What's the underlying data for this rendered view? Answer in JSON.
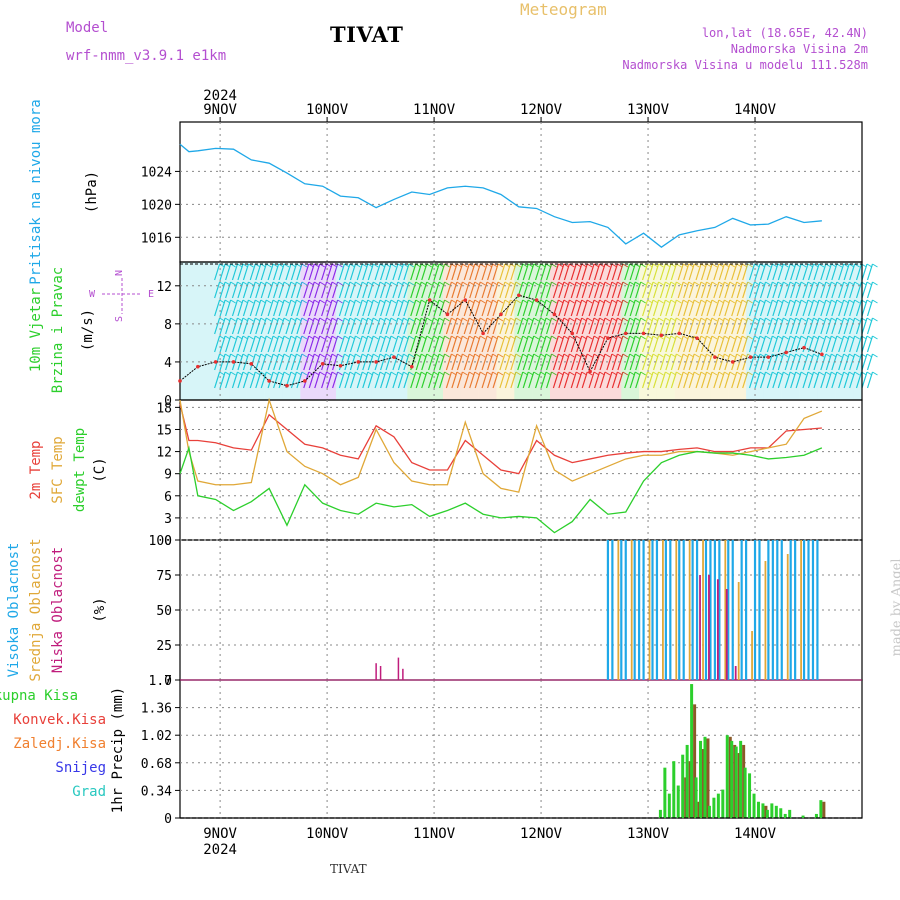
{
  "header": {
    "title": "TIVAT",
    "model_label": "Model",
    "model_name": "wrf-nmm_v3.9.1 e1km",
    "meteogram": "Meteogram",
    "info_lonlat": "lon,lat (18.65E, 42.4N)",
    "info_height": "Nadmorska Visina 2m",
    "info_model_height": "Nadmorska Visina u modelu 111.528m",
    "footer": "TIVAT",
    "credit": "made by Angel"
  },
  "colors": {
    "pressure": "#1fa8e8",
    "temp2m": "#e8403a",
    "sfc": "#e0a838",
    "dewpt": "#2ccf2c",
    "high_cloud": "#1fa8e8",
    "mid_cloud": "#e0a838",
    "low_cloud": "#c01c7c",
    "total_precip": "#2ccf2c",
    "conv_precip": "#e8403a",
    "frozen": "#f08030",
    "snow": "#3838e8",
    "hail": "#28c8c0"
  },
  "chart_data": [
    {
      "type": "line",
      "name": "pressure",
      "ylabel_lines": [
        "Pritisak na nivou mora",
        "(hPa)"
      ],
      "ylim": [
        1013,
        1030
      ],
      "yticks": [
        "1024",
        "1020",
        "1016"
      ],
      "ytick_values": [
        1024,
        1020,
        1016
      ],
      "x_dates": [
        "9NOV",
        "10NOV",
        "11NOV",
        "12NOV",
        "13NOV",
        "14NOV"
      ],
      "top_year": "2024",
      "x_hours": [
        0,
        2,
        4,
        8,
        12,
        16,
        20,
        24,
        28,
        32,
        36,
        40,
        44,
        48,
        52,
        56,
        60,
        64,
        68,
        72,
        76,
        80,
        84,
        88,
        92,
        96,
        100,
        104,
        108,
        112,
        116,
        120,
        124,
        128,
        132,
        136,
        140,
        144
      ],
      "values": [
        1027.3,
        1026.4,
        1026.5,
        1026.8,
        1026.7,
        1025.4,
        1025.0,
        1023.8,
        1022.5,
        1022.2,
        1021.0,
        1020.8,
        1019.6,
        1020.6,
        1021.5,
        1021.2,
        1022.0,
        1022.2,
        1022.0,
        1021.2,
        1019.7,
        1019.5,
        1018.5,
        1017.8,
        1017.9,
        1017.2,
        1015.2,
        1016.5,
        1014.8,
        1016.3,
        1016.8,
        1017.2,
        1018.3,
        1017.5,
        1017.6,
        1018.5,
        1017.8,
        1018.0
      ]
    },
    {
      "type": "line",
      "name": "wind",
      "ylabel_lines": [
        "10m Vjetar",
        "Brzina i Pravac",
        "(m/s)"
      ],
      "compass": "N",
      "compass_w": "W",
      "compass_e": "E",
      "compass_s": "S",
      "ylim": [
        0,
        14.5
      ],
      "yticks": [
        "12",
        "8",
        "4",
        "0"
      ],
      "ytick_values": [
        12,
        8,
        4,
        0
      ],
      "x_hours": [
        0,
        4,
        8,
        12,
        16,
        20,
        24,
        28,
        32,
        36,
        40,
        44,
        48,
        52,
        56,
        60,
        64,
        68,
        72,
        76,
        80,
        84,
        88,
        92,
        96,
        100,
        104,
        108,
        112,
        116,
        120,
        124,
        128,
        132,
        136,
        140,
        144
      ],
      "values": [
        2.0,
        3.5,
        4.0,
        4.0,
        3.8,
        2.0,
        1.5,
        2.0,
        3.8,
        3.6,
        4.0,
        4.0,
        4.5,
        3.5,
        10.5,
        9.0,
        10.5,
        7.0,
        9.0,
        11.0,
        10.5,
        9.0,
        7.0,
        3.0,
        6.5,
        7.0,
        7.0,
        6.8,
        7.0,
        6.5,
        4.5,
        4.0,
        4.5,
        4.5,
        5.0,
        5.5,
        4.8
      ],
      "barb_colors": [
        "#1fc8d8",
        "#1fc8d8",
        "#1fc8d8",
        "#1fc8d8",
        "#1fc8d8",
        "#8a2ae8",
        "#8a2ae8",
        "#1fc8d8",
        "#1fc8d8",
        "#1fc8d8",
        "#1fc8d8",
        "#2ccf2c",
        "#2ccf2c",
        "#e87a30",
        "#e87a30",
        "#e87a30",
        "#e8c038",
        "#2ccf2c",
        "#2ccf2c",
        "#e83030",
        "#e83030",
        "#e83030",
        "#e83030",
        "#2ccf2c",
        "#d8e038",
        "#d8e038",
        "#e8c038",
        "#e8c038",
        "#e8c038",
        "#e8c038",
        "#1fc8d8",
        "#1fc8d8",
        "#1fc8d8",
        "#1fc8d8",
        "#1fc8d8",
        "#1fc8d8",
        "#1fc8d8"
      ]
    },
    {
      "type": "line",
      "name": "temperature",
      "ylabel_lines": [
        "2m Temp",
        "SFC Temp",
        "dewpt Temp",
        "(C)"
      ],
      "ylim": [
        0,
        19
      ],
      "yticks": [
        "18",
        "15",
        "12",
        "9",
        "6",
        "3",
        "0"
      ],
      "ytick_values": [
        18,
        15,
        12,
        9,
        6,
        3,
        0
      ],
      "x_hours": [
        0,
        2,
        4,
        8,
        12,
        16,
        20,
        24,
        28,
        32,
        36,
        40,
        44,
        48,
        52,
        56,
        60,
        64,
        68,
        72,
        76,
        80,
        84,
        88,
        92,
        96,
        100,
        104,
        108,
        112,
        116,
        120,
        124,
        128,
        132,
        136,
        140,
        144
      ],
      "series": [
        {
          "name": "2m Temp",
          "values": [
            18.5,
            13.5,
            13.5,
            13.2,
            12.5,
            12.2,
            17.0,
            15.0,
            13.0,
            12.5,
            11.5,
            11.0,
            15.5,
            14.0,
            10.5,
            9.5,
            9.5,
            13.5,
            11.5,
            9.5,
            9.0,
            13.5,
            11.5,
            10.5,
            11.0,
            11.5,
            11.8,
            12.0,
            12.0,
            12.3,
            12.5,
            12.0,
            12.0,
            12.5,
            12.5,
            14.8,
            15.0,
            15.2
          ]
        },
        {
          "name": "SFC Temp",
          "values": [
            19.0,
            12.0,
            8.0,
            7.5,
            7.5,
            7.8,
            19.0,
            12.0,
            10.0,
            9.0,
            7.5,
            8.5,
            15.0,
            10.5,
            8.0,
            7.5,
            7.5,
            16.0,
            9.0,
            7.0,
            6.5,
            15.5,
            9.5,
            8.0,
            9.0,
            10.0,
            11.0,
            11.5,
            11.5,
            12.0,
            12.0,
            11.8,
            11.5,
            12.0,
            12.5,
            13.0,
            16.5,
            17.5
          ]
        },
        {
          "name": "dewpt Temp",
          "values": [
            9.0,
            12.5,
            6.0,
            5.5,
            4.0,
            5.2,
            7.0,
            2.0,
            7.5,
            5.0,
            4.0,
            3.5,
            5.0,
            4.5,
            4.8,
            3.2,
            4.0,
            5.0,
            3.5,
            3.0,
            3.2,
            3.0,
            1.0,
            2.5,
            5.5,
            3.5,
            3.8,
            8.0,
            10.5,
            11.5,
            12.0,
            11.8,
            11.8,
            11.5,
            11.0,
            11.2,
            11.5,
            12.5
          ]
        }
      ]
    },
    {
      "type": "bar",
      "name": "clouds",
      "ylabel_lines": [
        "Visoka Oblacnost",
        "Srednja Oblacnost",
        "Niska Oblacnost",
        "(%)"
      ],
      "ylim": [
        0,
        100
      ],
      "yticks": [
        "100",
        "75",
        "50",
        "25",
        "0"
      ],
      "ytick_values": [
        100,
        75,
        50,
        25,
        0
      ],
      "small_low_x": [
        44,
        45,
        49,
        50
      ],
      "small_low_values": [
        12,
        10,
        16,
        8
      ],
      "high_start_hour": 96,
      "high_x": [
        96,
        97,
        99,
        100,
        102,
        103,
        104,
        106,
        107,
        109,
        110,
        112,
        113,
        115,
        116,
        118,
        119,
        120,
        121,
        123,
        124,
        126,
        127,
        129,
        130,
        132,
        133,
        134,
        135,
        137,
        138,
        140,
        141,
        142,
        143
      ],
      "high_values": [
        100,
        100,
        100,
        100,
        100,
        100,
        100,
        100,
        100,
        100,
        100,
        100,
        100,
        100,
        100,
        100,
        100,
        100,
        100,
        100,
        100,
        100,
        100,
        100,
        100,
        100,
        100,
        100,
        100,
        100,
        100,
        100,
        100,
        100,
        100
      ],
      "mid_x": [
        98,
        101,
        105,
        108,
        111,
        114,
        117,
        122,
        125,
        128,
        131,
        136,
        139
      ],
      "mid_values": [
        100,
        100,
        100,
        100,
        100,
        100,
        100,
        100,
        70,
        35,
        85,
        90,
        100
      ],
      "low_x": [
        117,
        119,
        121,
        123,
        125
      ],
      "low_values": [
        75,
        75,
        72,
        65,
        10
      ]
    },
    {
      "type": "bar",
      "name": "precip",
      "ylabel_lines": [
        "1hr Precip (mm)"
      ],
      "legend": [
        "Ukupna Kisa",
        "Konvek.Kisa",
        "Zaledj.Kisa",
        "Snijeg",
        "Grad"
      ],
      "ylim": [
        0,
        1.7
      ],
      "yticks": [
        "1.7",
        "1.36",
        "1.02",
        "0.68",
        "0.34",
        "0"
      ],
      "ytick_values": [
        1.7,
        1.36,
        1.02,
        0.68,
        0.34,
        0
      ],
      "x_dates": [
        "9NOV",
        "10NOV",
        "11NOV",
        "12NOV",
        "13NOV",
        "14NOV"
      ],
      "bottom_year": "2024",
      "x_hours": [
        108,
        109,
        110,
        111,
        112,
        113,
        114,
        115,
        116,
        117,
        118,
        119,
        120,
        121,
        122,
        123,
        124,
        125,
        126,
        127,
        128,
        129,
        130,
        131,
        132,
        133,
        134,
        135,
        136,
        137,
        138,
        139,
        140,
        141,
        142,
        143,
        144
      ],
      "total": [
        0.1,
        0.62,
        0.3,
        0.7,
        0.4,
        0.78,
        0.9,
        1.65,
        0.5,
        0.95,
        1.0,
        0.15,
        0.25,
        0.3,
        0.35,
        1.02,
        0.95,
        0.88,
        0.95,
        0.62,
        0.55,
        0.3,
        0.2,
        0.18,
        0.1,
        0.18,
        0.15,
        0.12,
        0.05,
        0.1,
        0.0,
        0.0,
        0.03,
        0.0,
        0.0,
        0.05,
        0.22
      ],
      "conv": [
        0.0,
        0.0,
        0.0,
        0.0,
        0.0,
        0.5,
        0.7,
        1.4,
        0.2,
        0.85,
        0.98,
        0.0,
        0.0,
        0.0,
        0.0,
        1.0,
        0.9,
        0.8,
        0.9,
        0.0,
        0.0,
        0.0,
        0.0,
        0.15,
        0.0,
        0.0,
        0.0,
        0.0,
        0.0,
        0.0,
        0.0,
        0.0,
        0.0,
        0.0,
        0.0,
        0.0,
        0.2
      ]
    }
  ]
}
